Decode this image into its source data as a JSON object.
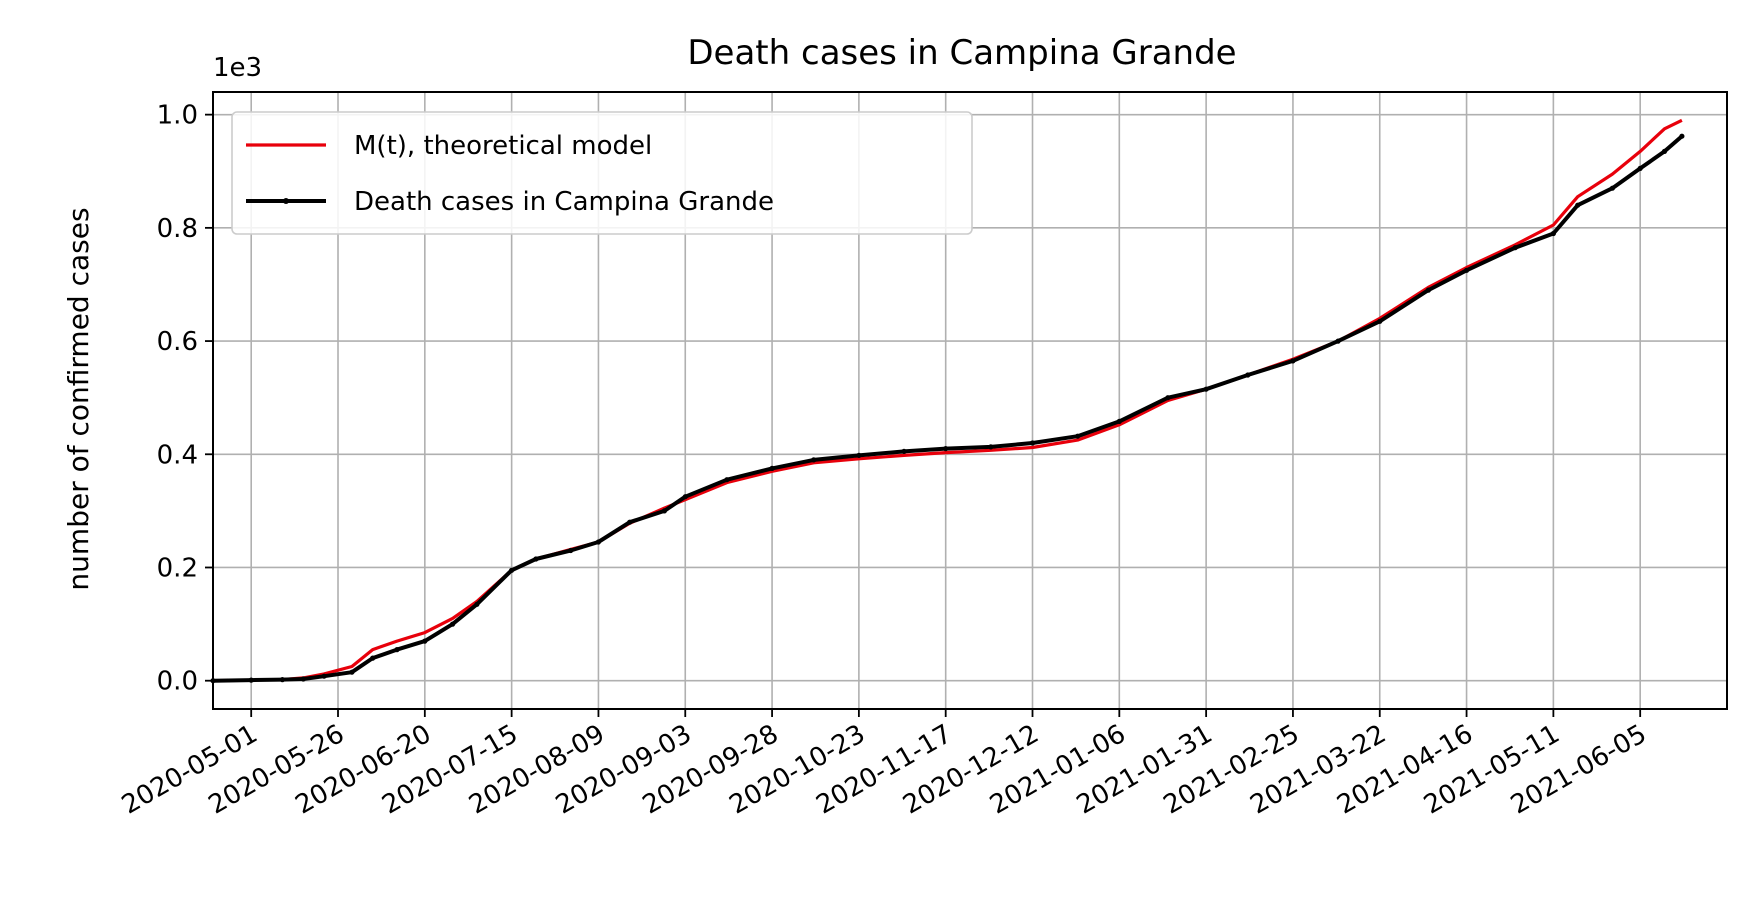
{
  "chart_data": {
    "type": "line",
    "title": "Death cases in Campina Grande",
    "xlabel": "",
    "ylabel": "number of confirmed cases",
    "y_offset_label": "1e3",
    "y_scale_factor": 1000,
    "xlim": [
      "2020-04-20",
      "2021-06-30"
    ],
    "ylim": [
      -50,
      1040
    ],
    "grid": true,
    "legend_position": "upper-left",
    "x_ticks": [
      "2020-05-01",
      "2020-05-26",
      "2020-06-20",
      "2020-07-15",
      "2020-08-09",
      "2020-09-03",
      "2020-09-28",
      "2020-10-23",
      "2020-11-17",
      "2020-12-12",
      "2021-01-06",
      "2021-01-31",
      "2021-02-25",
      "2021-03-22",
      "2021-04-16",
      "2021-05-11",
      "2021-06-05"
    ],
    "y_ticks": [
      0,
      200,
      400,
      600,
      800,
      1000
    ],
    "y_tick_labels": [
      "0.0",
      "0.2",
      "0.4",
      "0.6",
      "0.8",
      "1.0"
    ],
    "series": [
      {
        "name": "M(t), theoretical model",
        "color": "#e8000b",
        "marker": "none",
        "points": [
          [
            "2020-04-20",
            0
          ],
          [
            "2020-05-01",
            1
          ],
          [
            "2020-05-10",
            2
          ],
          [
            "2020-05-16",
            5
          ],
          [
            "2020-05-22",
            12
          ],
          [
            "2020-05-30",
            25
          ],
          [
            "2020-06-05",
            55
          ],
          [
            "2020-06-12",
            70
          ],
          [
            "2020-06-20",
            85
          ],
          [
            "2020-06-28",
            110
          ],
          [
            "2020-07-05",
            140
          ],
          [
            "2020-07-15",
            195
          ],
          [
            "2020-07-22",
            215
          ],
          [
            "2020-08-01",
            232
          ],
          [
            "2020-08-09",
            245
          ],
          [
            "2020-08-18",
            278
          ],
          [
            "2020-08-28",
            305
          ],
          [
            "2020-09-03",
            320
          ],
          [
            "2020-09-15",
            350
          ],
          [
            "2020-09-28",
            370
          ],
          [
            "2020-10-10",
            385
          ],
          [
            "2020-10-23",
            392
          ],
          [
            "2020-11-05",
            398
          ],
          [
            "2020-11-17",
            403
          ],
          [
            "2020-11-30",
            407
          ],
          [
            "2020-12-12",
            412
          ],
          [
            "2020-12-25",
            425
          ],
          [
            "2021-01-06",
            452
          ],
          [
            "2021-01-20",
            495
          ],
          [
            "2021-01-31",
            515
          ],
          [
            "2021-02-12",
            540
          ],
          [
            "2021-02-25",
            568
          ],
          [
            "2021-03-10",
            600
          ],
          [
            "2021-03-22",
            640
          ],
          [
            "2021-04-05",
            695
          ],
          [
            "2021-04-16",
            730
          ],
          [
            "2021-04-30",
            770
          ],
          [
            "2021-05-11",
            805
          ],
          [
            "2021-05-18",
            855
          ],
          [
            "2021-05-28",
            895
          ],
          [
            "2021-06-05",
            935
          ],
          [
            "2021-06-12",
            975
          ],
          [
            "2021-06-17",
            990
          ]
        ]
      },
      {
        "name": "Death cases in Campina Grande",
        "color": "#000000",
        "marker": "dot",
        "points": [
          [
            "2020-04-20",
            0
          ],
          [
            "2020-05-01",
            1
          ],
          [
            "2020-05-10",
            2
          ],
          [
            "2020-05-16",
            3
          ],
          [
            "2020-05-22",
            8
          ],
          [
            "2020-05-30",
            15
          ],
          [
            "2020-06-05",
            40
          ],
          [
            "2020-06-12",
            55
          ],
          [
            "2020-06-20",
            70
          ],
          [
            "2020-06-28",
            100
          ],
          [
            "2020-07-05",
            135
          ],
          [
            "2020-07-15",
            195
          ],
          [
            "2020-07-22",
            215
          ],
          [
            "2020-08-01",
            230
          ],
          [
            "2020-08-09",
            245
          ],
          [
            "2020-08-18",
            280
          ],
          [
            "2020-08-28",
            300
          ],
          [
            "2020-09-03",
            325
          ],
          [
            "2020-09-15",
            355
          ],
          [
            "2020-09-28",
            375
          ],
          [
            "2020-10-10",
            390
          ],
          [
            "2020-10-23",
            398
          ],
          [
            "2020-11-05",
            405
          ],
          [
            "2020-11-17",
            410
          ],
          [
            "2020-11-30",
            413
          ],
          [
            "2020-12-12",
            420
          ],
          [
            "2020-12-25",
            432
          ],
          [
            "2021-01-06",
            458
          ],
          [
            "2021-01-20",
            500
          ],
          [
            "2021-01-31",
            515
          ],
          [
            "2021-02-12",
            540
          ],
          [
            "2021-02-25",
            565
          ],
          [
            "2021-03-10",
            600
          ],
          [
            "2021-03-22",
            635
          ],
          [
            "2021-04-05",
            690
          ],
          [
            "2021-04-16",
            725
          ],
          [
            "2021-04-30",
            765
          ],
          [
            "2021-05-11",
            790
          ],
          [
            "2021-05-18",
            840
          ],
          [
            "2021-05-28",
            870
          ],
          [
            "2021-06-05",
            905
          ],
          [
            "2021-06-12",
            935
          ],
          [
            "2021-06-17",
            962
          ]
        ]
      }
    ]
  }
}
